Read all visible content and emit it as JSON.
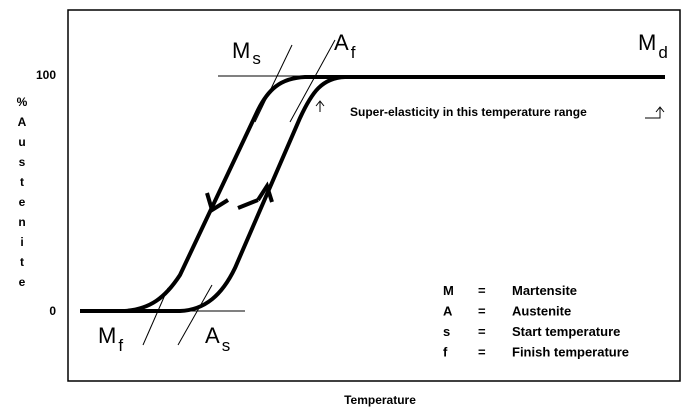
{
  "y_axis": {
    "label_letters": [
      "%",
      "A",
      "u",
      "s",
      "t",
      "e",
      "n",
      "i",
      "t",
      "e"
    ],
    "ticks": [
      "100",
      "0"
    ]
  },
  "x_axis": {
    "label": "Temperature"
  },
  "curve_labels": {
    "ms": {
      "main": "M",
      "sub": "s"
    },
    "af": {
      "main": "A",
      "sub": "f"
    },
    "md": {
      "main": "M",
      "sub": "d"
    },
    "mf": {
      "main": "M",
      "sub": "f"
    },
    "as": {
      "main": "A",
      "sub": "s"
    }
  },
  "annotation": "Super-elasticity in this temperature range",
  "legend": [
    {
      "symbol": "M",
      "eq": "=",
      "meaning": "Martensite"
    },
    {
      "symbol": "A",
      "eq": "=",
      "meaning": "Austenite"
    },
    {
      "symbol": "s",
      "eq": "=",
      "meaning": "Start temperature"
    },
    {
      "symbol": "f",
      "eq": "=",
      "meaning": "Finish temperature"
    }
  ]
}
